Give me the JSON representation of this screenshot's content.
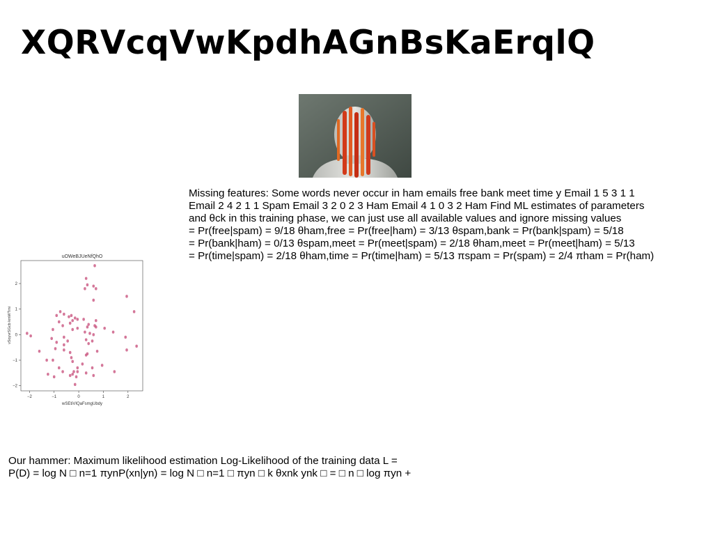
{
  "slide": {
    "title": "XQRVcqVwKpdhAGnBsKaErqlQ",
    "paragraph_lines": [
      "Missing features: Some words never occur in ham emails free bank meet time y Email 1 5 3 1 1",
      "Email 2 4 2 1 1 Spam Email 3 2 0 2 3 Ham Email 4 1 0 3 2 Ham Find ML estimates of parameters",
      "and θck in this training phase, we can just use all available values and ignore missing values",
      "= Pr(free|spam) = 9/18 θham,free = Pr(free|ham) = 3/13 θspam,bank = Pr(bank|spam) = 5/18",
      "= Pr(bank|ham) = 0/13 θspam,meet = Pr(meet|spam) = 2/18 θham,meet = Pr(meet|ham) = 5/13",
      "= Pr(time|spam) = 2/18 θham,time = Pr(time|ham) = 5/13 πspam = Pr(spam) = 2/4 πham = Pr(ham)"
    ],
    "bottom_lines": [
      "Our hammer: Maximum likelihood estimation Log-Likelihood of the training data L =",
      "P(D) = log N □ n=1 πynP(xn|yn) = log N □ n=1 □ πyn □ k θxnk ynk □ = □ n □ log πyn +"
    ]
  },
  "chart_data": {
    "type": "scatter",
    "title": "uOWeBJUeNfQhO",
    "xlabel": "wSEtiVIQaFsmgUbdy",
    "ylabel": "vSoyvrSGcb kmWTmi",
    "xlim": [
      -2.35,
      2.6
    ],
    "ylim": [
      -2.2,
      2.9
    ],
    "xticks": [
      -2,
      -1,
      0,
      1,
      2
    ],
    "yticks": [
      -2,
      -1,
      0,
      1,
      2
    ],
    "point_color": "#c9557f",
    "points": [
      [
        0.65,
        2.7
      ],
      [
        0.3,
        2.2
      ],
      [
        0.35,
        1.95
      ],
      [
        0.6,
        1.9
      ],
      [
        0.7,
        1.8
      ],
      [
        0.25,
        1.8
      ],
      [
        1.95,
        1.5
      ],
      [
        0.6,
        1.35
      ],
      [
        2.25,
        0.9
      ],
      [
        -0.75,
        0.9
      ],
      [
        -0.6,
        0.8
      ],
      [
        -0.9,
        0.75
      ],
      [
        -0.4,
        0.7
      ],
      [
        -0.3,
        0.75
      ],
      [
        -0.15,
        0.65
      ],
      [
        -0.25,
        0.55
      ],
      [
        -0.05,
        0.6
      ],
      [
        0.2,
        0.6
      ],
      [
        0.7,
        0.55
      ],
      [
        -0.8,
        0.5
      ],
      [
        -0.35,
        0.45
      ],
      [
        0.4,
        0.4
      ],
      [
        0.65,
        0.35
      ],
      [
        -0.65,
        0.35
      ],
      [
        0.35,
        0.3
      ],
      [
        0.7,
        0.3
      ],
      [
        -0.05,
        0.25
      ],
      [
        -1.05,
        0.2
      ],
      [
        -0.25,
        0.2
      ],
      [
        1.05,
        0.25
      ],
      [
        0.25,
        0.1
      ],
      [
        1.4,
        0.1
      ],
      [
        0.45,
        0.05
      ],
      [
        -2.1,
        0.05
      ],
      [
        0.6,
        0.0
      ],
      [
        -1.95,
        -0.05
      ],
      [
        1.9,
        -0.1
      ],
      [
        -0.6,
        -0.1
      ],
      [
        -1.1,
        -0.15
      ],
      [
        0.3,
        -0.2
      ],
      [
        0.55,
        -0.25
      ],
      [
        -0.45,
        -0.25
      ],
      [
        -0.9,
        -0.3
      ],
      [
        0.4,
        -0.35
      ],
      [
        -0.6,
        -0.4
      ],
      [
        2.35,
        -0.45
      ],
      [
        -0.95,
        -0.55
      ],
      [
        -0.6,
        -0.6
      ],
      [
        1.95,
        -0.6
      ],
      [
        -1.6,
        -0.65
      ],
      [
        0.75,
        -0.65
      ],
      [
        -0.35,
        -0.7
      ],
      [
        0.35,
        -0.75
      ],
      [
        0.3,
        -0.8
      ],
      [
        -0.3,
        -0.9
      ],
      [
        -1.3,
        -1.0
      ],
      [
        -1.05,
        -1.0
      ],
      [
        -0.25,
        -1.05
      ],
      [
        0.15,
        -1.15
      ],
      [
        0.95,
        -1.2
      ],
      [
        -0.05,
        -1.3
      ],
      [
        -0.8,
        -1.3
      ],
      [
        0.55,
        -1.3
      ],
      [
        -0.2,
        -1.45
      ],
      [
        -0.65,
        -1.45
      ],
      [
        -0.05,
        -1.45
      ],
      [
        1.45,
        -1.45
      ],
      [
        0.3,
        -1.5
      ],
      [
        -1.25,
        -1.55
      ],
      [
        -0.25,
        -1.55
      ],
      [
        0.6,
        -1.6
      ],
      [
        -0.1,
        -1.65
      ],
      [
        -1.0,
        -1.65
      ],
      [
        -0.35,
        -1.6
      ],
      [
        -0.15,
        -1.95
      ]
    ]
  }
}
